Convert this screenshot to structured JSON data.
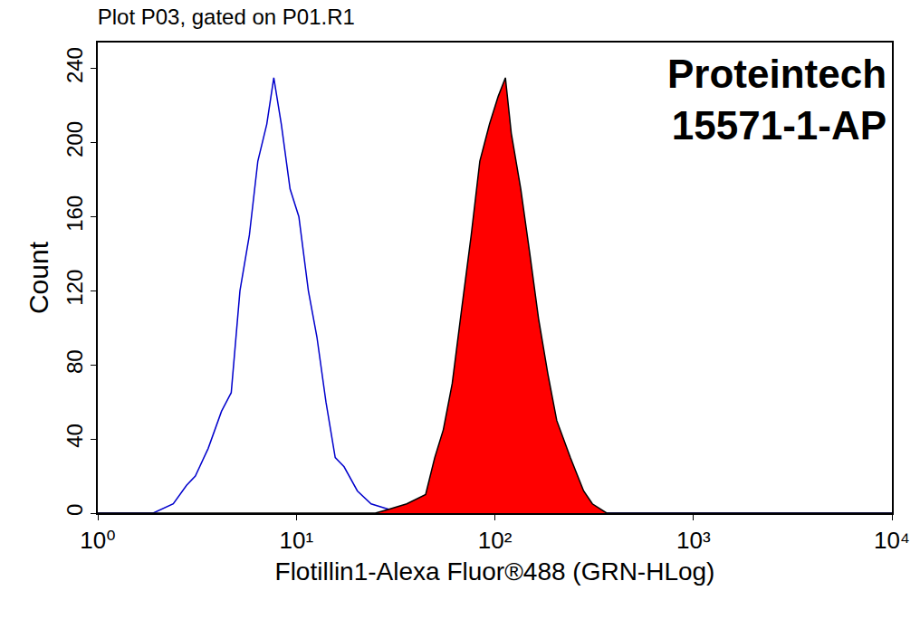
{
  "chart_data": {
    "type": "line",
    "title": "Plot P03, gated on P01.R1",
    "x_label": "Flotillin1-Alexa Fluor®488 (GRN-HLog)",
    "y_label": "Count",
    "annotations": [
      "Proteintech",
      "15571-1-AP"
    ],
    "log": "x",
    "grid": false,
    "xlim": [
      1,
      10000
    ],
    "xticks": [
      {
        "value": 1,
        "label": "10⁰"
      },
      {
        "value": 10,
        "label": "10¹"
      },
      {
        "value": 100,
        "label": "10²"
      },
      {
        "value": 1000,
        "label": "10³"
      },
      {
        "value": 10000,
        "label": "10⁴"
      }
    ],
    "ylim": [
      0,
      254
    ],
    "yticks": [
      0,
      40,
      80,
      120,
      160,
      200,
      240
    ],
    "series": [
      {
        "type": "line",
        "color": "#0000cc",
        "x": [
          1,
          1.9,
          2.4,
          2.8,
          3.1,
          3.6,
          4.2,
          4.7,
          5.2,
          5.8,
          6.4,
          7.1,
          7.7,
          8.4,
          9.3,
          10.3,
          11.5,
          12.7,
          14.1,
          15.7,
          17.4,
          20.3,
          23.8,
          29.4,
          36,
          10000
        ],
        "values": [
          0,
          0,
          5,
          15,
          20,
          35,
          55,
          65,
          120,
          150,
          190,
          210,
          235,
          210,
          175,
          160,
          120,
          95,
          60,
          30,
          25,
          12,
          5,
          2,
          0,
          0
        ]
      },
      {
        "type": "area",
        "color": "#ff0000",
        "x": [
          1,
          25,
          29,
          36,
          44.8,
          49.8,
          55,
          61,
          68,
          76,
          84,
          94,
          104,
          113,
          121,
          135,
          150,
          166,
          185,
          205,
          240,
          280,
          310,
          366,
          10000
        ],
        "values": [
          0,
          0,
          2,
          5,
          10,
          30,
          45,
          70,
          110,
          150,
          190,
          210,
          225,
          235,
          205,
          175,
          140,
          105,
          75,
          50,
          30,
          12,
          5,
          0,
          0
        ]
      }
    ]
  }
}
